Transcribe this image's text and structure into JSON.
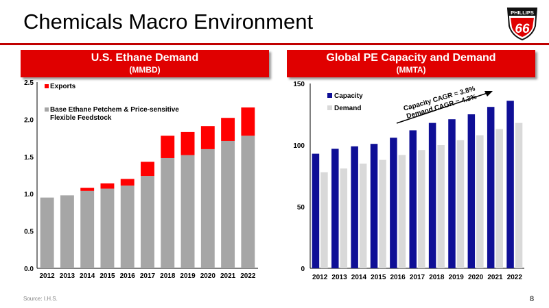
{
  "page": {
    "title": "Chemicals Macro Environment",
    "source": "Source: I.H.S.",
    "page_number": "8",
    "logo_text_top": "PHILLIPS",
    "logo_text_main": "66"
  },
  "colors": {
    "accent_red": "#e00000",
    "rule_red": "#c00000",
    "base_gray": "#a6a6a6",
    "exports_red": "#ff0000",
    "capacity_blue": "#0f0f96",
    "demand_gray": "#d9d9d9"
  },
  "left_panel": {
    "title": "U.S. Ethane Demand",
    "subtitle": "(MMBD)"
  },
  "right_panel": {
    "title": "Global PE Capacity and Demand",
    "subtitle": "(MMTA)"
  },
  "chart_data": [
    {
      "type": "bar",
      "stacked": true,
      "categories": [
        "2012",
        "2013",
        "2014",
        "2015",
        "2016",
        "2017",
        "2018",
        "2019",
        "2020",
        "2021",
        "2022"
      ],
      "series": [
        {
          "name": "Base Ethane Petchem & Price-sensitive Flexible Feedstock",
          "legend_lines": [
            "Base Ethane Petchem & Price-sensitive",
            "Flexible Feedstock"
          ],
          "color": "#a6a6a6",
          "values": [
            0.95,
            0.98,
            1.04,
            1.07,
            1.11,
            1.24,
            1.48,
            1.52,
            1.6,
            1.71,
            1.78
          ]
        },
        {
          "name": "Exports",
          "legend_lines": [
            "Exports"
          ],
          "color": "#ff0000",
          "values": [
            0,
            0,
            0.04,
            0.07,
            0.09,
            0.19,
            0.3,
            0.31,
            0.31,
            0.31,
            0.38
          ]
        }
      ],
      "ylim": [
        0,
        2.5
      ],
      "yticks": [
        "0.0",
        "0.5",
        "1.0",
        "1.5",
        "2.0",
        "2.5"
      ],
      "ytick_values": [
        0,
        0.5,
        1.0,
        1.5,
        2.0,
        2.5
      ],
      "legend_position": "top-left",
      "grid": false
    },
    {
      "type": "bar",
      "categories": [
        "2012",
        "2013",
        "2014",
        "2015",
        "2016",
        "2017",
        "2018",
        "2019",
        "2020",
        "2021",
        "2022"
      ],
      "series": [
        {
          "name": "Capacity",
          "color": "#0f0f96",
          "values": [
            93,
            97,
            99,
            101,
            106,
            112,
            118,
            121,
            125,
            131,
            136
          ]
        },
        {
          "name": "Demand",
          "color": "#d9d9d9",
          "values": [
            78,
            81,
            85,
            88,
            92,
            96,
            100,
            104,
            108,
            113,
            118
          ]
        }
      ],
      "ylim": [
        0,
        150
      ],
      "yticks": [
        "0",
        "50",
        "100",
        "150"
      ],
      "ytick_values": [
        0,
        50,
        100,
        150
      ],
      "annotations": [
        "Capacity CAGR = 3.8%",
        "Demand CAGR = 4.3%"
      ],
      "legend_position": "top-left",
      "grid": false
    }
  ]
}
